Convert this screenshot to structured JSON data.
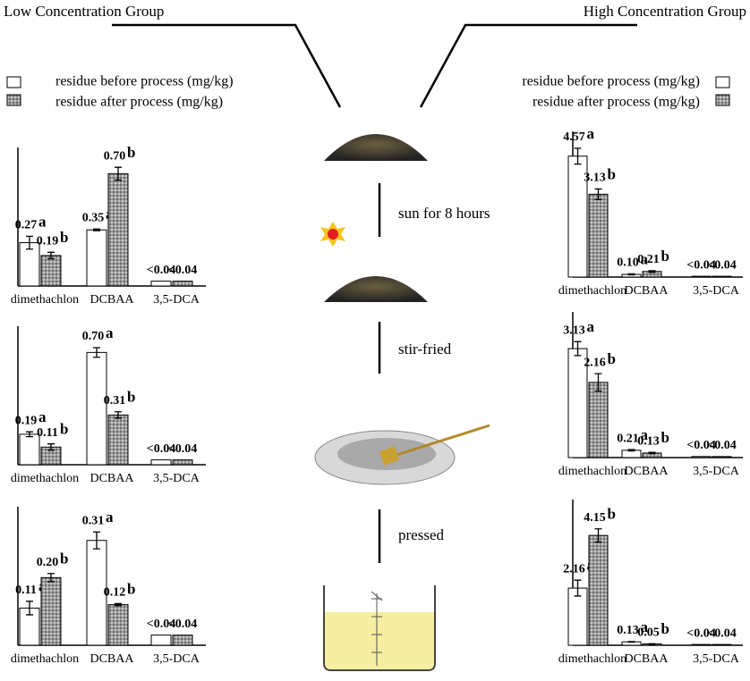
{
  "figure": {
    "left_title": "Low Concentration Group",
    "right_title": "High Concentration Group",
    "legend_left": [
      "residue before process (mg/kg)",
      "residue after process (mg/kg)"
    ],
    "legend_right": [
      "residue before process (mg/kg)",
      "residue after process (mg/kg)"
    ],
    "steps": [
      "sun for 8 hours",
      "stir-fried",
      "pressed"
    ]
  },
  "chart_data": [
    {
      "type": "bar",
      "categories": [
        "dimethachlon",
        "DCBAA",
        "3,5-DCA"
      ],
      "ylim": [
        0,
        0.78
      ],
      "letter_colors": [
        "#7a2a9a",
        "#f07828",
        null
      ],
      "series": [
        {
          "color": "#ffffff",
          "values": [
            0.27,
            0.35,
            0.03
          ],
          "value_labels": [
            "0.27",
            "0.35",
            "<0.04"
          ],
          "errors": [
            0.04,
            0.005,
            0
          ],
          "letters": [
            "a",
            "a",
            null
          ]
        },
        {
          "color": "#8a8a8a",
          "values": [
            0.19,
            0.7,
            0.03
          ],
          "value_labels": [
            "0.19",
            "0.70",
            "<0.04"
          ],
          "errors": [
            0.02,
            0.04,
            0
          ],
          "letters": [
            "b",
            "b",
            null
          ]
        }
      ]
    },
    {
      "type": "bar",
      "categories": [
        "dimethachlon",
        "DCBAA",
        "3,5-DCA"
      ],
      "ylim": [
        0,
        0.78
      ],
      "letter_colors": [
        "#7a2a9a",
        "#f07828",
        null
      ],
      "series": [
        {
          "color": "#ffffff",
          "values": [
            0.19,
            0.7,
            0.03
          ],
          "value_labels": [
            "0.19",
            "0.70",
            "<0.04"
          ],
          "errors": [
            0.015,
            0.03,
            0
          ],
          "letters": [
            "a",
            "a",
            null
          ]
        },
        {
          "color": "#8a8a8a",
          "values": [
            0.11,
            0.31,
            0.03
          ],
          "value_labels": [
            "0.11",
            "0.31",
            "<0.04"
          ],
          "errors": [
            0.02,
            0.02,
            0
          ],
          "letters": [
            "b",
            "b",
            null
          ]
        }
      ]
    },
    {
      "type": "bar",
      "categories": [
        "dimethachlon",
        "DCBAA",
        "3,5-DCA"
      ],
      "ylim": [
        0,
        0.37
      ],
      "letter_colors": [
        "#7a2a9a",
        "#f07828",
        null
      ],
      "series": [
        {
          "color": "#ffffff",
          "values": [
            0.11,
            0.31,
            0.03
          ],
          "value_labels": [
            "0.11",
            "0.31",
            "<0.04"
          ],
          "errors": [
            0.02,
            0.025,
            0
          ],
          "letters": [
            "a",
            "a",
            null
          ]
        },
        {
          "color": "#8a8a8a",
          "values": [
            0.2,
            0.12,
            0.03
          ],
          "value_labels": [
            "0.20",
            "0.12",
            "<0.04"
          ],
          "errors": [
            0.012,
            0.003,
            0
          ],
          "letters": [
            "b",
            "b",
            null
          ]
        }
      ]
    },
    {
      "type": "bar",
      "categories": [
        "dimethachlon",
        "DCBAA",
        "3,5-DCA"
      ],
      "ylim": [
        0,
        5
      ],
      "letter_colors": [
        "#7a2a9a",
        "#f07828",
        null
      ],
      "series": [
        {
          "color": "#ffffff",
          "values": [
            4.57,
            0.1,
            0.03
          ],
          "value_labels": [
            "4.57",
            "0.10",
            "<0.04"
          ],
          "errors": [
            0.3,
            0.02,
            0
          ],
          "letters": [
            "a",
            "a",
            null
          ]
        },
        {
          "color": "#8a8a8a",
          "values": [
            3.13,
            0.21,
            0.03
          ],
          "value_labels": [
            "3.13",
            "0.21",
            "<0.04"
          ],
          "errors": [
            0.2,
            0.03,
            0
          ],
          "letters": [
            "b",
            "b",
            null
          ]
        }
      ]
    },
    {
      "type": "bar",
      "categories": [
        "dimethachlon",
        "DCBAA",
        "3,5-DCA"
      ],
      "ylim": [
        0,
        3.8
      ],
      "letter_colors": [
        "#7a2a9a",
        "#f07828",
        null
      ],
      "series": [
        {
          "color": "#ffffff",
          "values": [
            3.13,
            0.21,
            0.03
          ],
          "value_labels": [
            "3.13",
            "0.21",
            "<0.04"
          ],
          "errors": [
            0.2,
            0.02,
            0
          ],
          "letters": [
            "a",
            "a",
            null
          ]
        },
        {
          "color": "#8a8a8a",
          "values": [
            2.16,
            0.13,
            0.03
          ],
          "value_labels": [
            "2.16",
            "0.13",
            "<0.04"
          ],
          "errors": [
            0.25,
            0.02,
            0
          ],
          "letters": [
            "b",
            "b",
            null
          ]
        }
      ]
    },
    {
      "type": "bar",
      "categories": [
        "dimethachlon",
        "DCBAA",
        "3,5-DCA"
      ],
      "ylim": [
        0,
        5
      ],
      "letter_colors": [
        "#7a2a9a",
        "#f07828",
        null
      ],
      "series": [
        {
          "color": "#ffffff",
          "values": [
            2.16,
            0.13,
            0.03
          ],
          "value_labels": [
            "2.16",
            "0.13",
            "<0.04"
          ],
          "errors": [
            0.3,
            0.01,
            0
          ],
          "letters": [
            "a",
            "a",
            null
          ]
        },
        {
          "color": "#8a8a8a",
          "values": [
            4.15,
            0.05,
            0.03
          ],
          "value_labels": [
            "4.15",
            "0.05",
            "<0.04"
          ],
          "errors": [
            0.25,
            0.01,
            0
          ],
          "letters": [
            "b",
            "b",
            null
          ]
        }
      ]
    }
  ]
}
